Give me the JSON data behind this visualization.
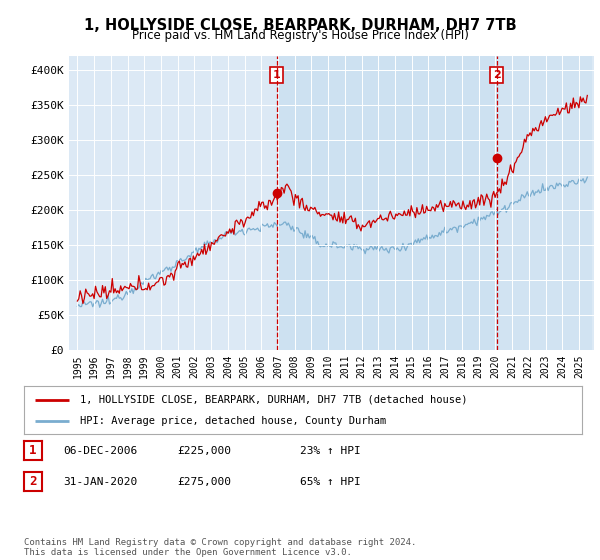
{
  "title": "1, HOLLYSIDE CLOSE, BEARPARK, DURHAM, DH7 7TB",
  "subtitle": "Price paid vs. HM Land Registry's House Price Index (HPI)",
  "ylim": [
    0,
    400000
  ],
  "yticks": [
    0,
    50000,
    100000,
    150000,
    200000,
    250000,
    300000,
    350000,
    400000
  ],
  "ytick_labels": [
    "£0",
    "£50K",
    "£100K",
    "£150K",
    "£200K",
    "£250K",
    "£300K",
    "£350K",
    "£400K"
  ],
  "red_color": "#cc0000",
  "blue_color": "#7aadcf",
  "sale1_date": 2006.92,
  "sale1_price": 225000,
  "sale1_label": "1",
  "sale2_date": 2020.08,
  "sale2_price": 275000,
  "sale2_label": "2",
  "legend_red": "1, HOLLYSIDE CLOSE, BEARPARK, DURHAM, DH7 7TB (detached house)",
  "legend_blue": "HPI: Average price, detached house, County Durham",
  "table_row1": [
    "1",
    "06-DEC-2006",
    "£225,000",
    "23% ↑ HPI"
  ],
  "table_row2": [
    "2",
    "31-JAN-2020",
    "£275,000",
    "65% ↑ HPI"
  ],
  "footnote": "Contains HM Land Registry data © Crown copyright and database right 2024.\nThis data is licensed under the Open Government Licence v3.0.",
  "plot_bg": "#dce9f5",
  "grid_color": "#ffffff",
  "shade_color": "#c8dff0"
}
